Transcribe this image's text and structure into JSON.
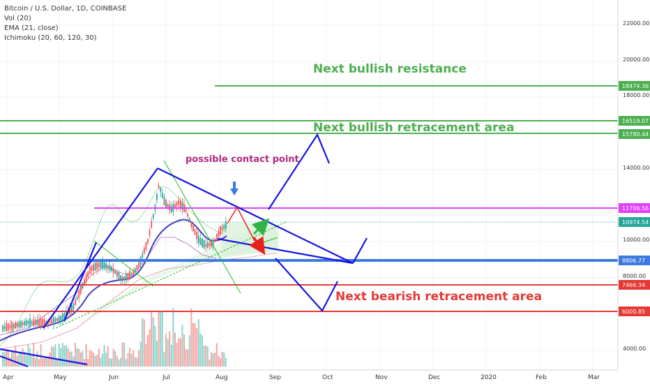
{
  "chart_data": {
    "type": "candlestick",
    "legend": [
      {
        "text": "Bitcoin / U.S. Dollar, 1D, COINBASE"
      },
      {
        "text": "Vol (20)"
      },
      {
        "text": "EMA (21, close)"
      },
      {
        "text": "Ichimoku (20, 60, 120, 30)"
      }
    ],
    "y_ticks": [
      "22000.00",
      "20000.00",
      "18000.00",
      "14000.00",
      "10000.00",
      "8000.00",
      "4000.00"
    ],
    "x_ticks": [
      "Apr",
      "May",
      "Jun",
      "Jul",
      "Aug",
      "Sep",
      "Oct",
      "Nov",
      "Dec",
      "2020",
      "Feb",
      "Mar"
    ],
    "levels": [
      {
        "label": "18474.36",
        "color": "#4caf50"
      },
      {
        "label": "16519.07",
        "color": "#4caf50"
      },
      {
        "label": "15780.44",
        "color": "#4caf50"
      },
      {
        "label": "11706.56",
        "color": "#e040fb"
      },
      {
        "label": "10974.54",
        "color": "#26a69a"
      },
      {
        "label": "8806.77",
        "color": "#3d7ae0"
      },
      {
        "label": "7466.34",
        "color": "#e53935"
      },
      {
        "label": "6000.85",
        "color": "#e53935"
      }
    ],
    "annotations": [
      {
        "text": "Next bullish resistance",
        "color": "#4caf50"
      },
      {
        "text": "Next bullish retracement area",
        "color": "#4caf50"
      },
      {
        "text": "possible contact point",
        "color": "#b0287f"
      },
      {
        "text": "Next bearish retracement area",
        "color": "#e53935"
      }
    ],
    "colors": {
      "up": "#26a69a",
      "down": "#ef5350",
      "ema": "#3f3fbf",
      "drawing": "#1515e0"
    }
  }
}
